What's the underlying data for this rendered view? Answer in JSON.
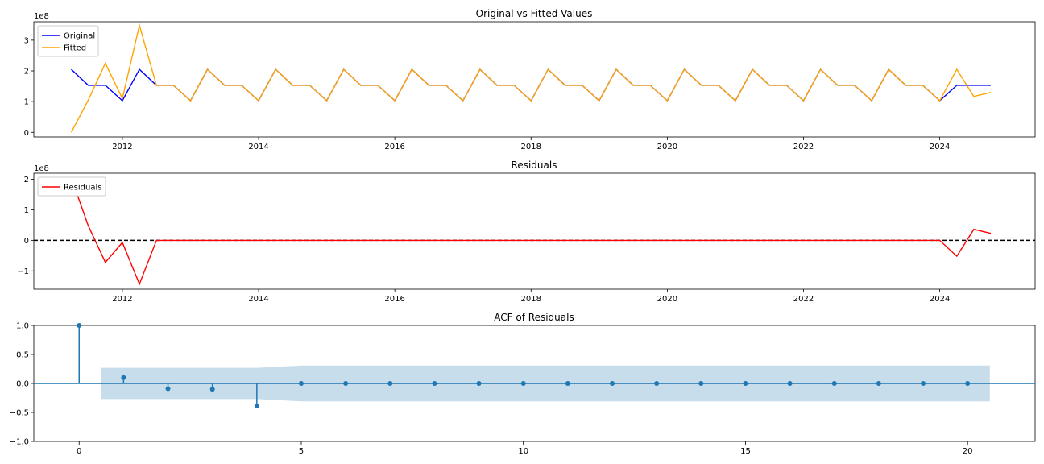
{
  "chart_data": [
    {
      "type": "line",
      "title": "Original vs Fitted Values",
      "offset_text": "1e8",
      "xlim": [
        2010.7,
        2025.4
      ],
      "ylim": [
        -0.15,
        3.6
      ],
      "xticks": [
        2012,
        2014,
        2016,
        2018,
        2020,
        2022,
        2024
      ],
      "yticks": [
        0,
        1,
        2,
        3
      ],
      "legend": "upper-left",
      "grid": false,
      "series": [
        {
          "name": "Original",
          "color": "#0000ff",
          "x": [
            2011.25,
            2011.5,
            2011.75,
            2012.0,
            2012.25,
            2012.5,
            2012.75,
            2013.0,
            2013.25,
            2013.5,
            2013.75,
            2014.0,
            2014.25,
            2014.5,
            2014.75,
            2015.0,
            2015.25,
            2015.5,
            2015.75,
            2016.0,
            2016.25,
            2016.5,
            2016.75,
            2017.0,
            2017.25,
            2017.5,
            2017.75,
            2018.0,
            2018.25,
            2018.5,
            2018.75,
            2019.0,
            2019.25,
            2019.5,
            2019.75,
            2020.0,
            2020.25,
            2020.5,
            2020.75,
            2021.0,
            2021.25,
            2021.5,
            2021.75,
            2022.0,
            2022.25,
            2022.5,
            2022.75,
            2023.0,
            2023.25,
            2023.5,
            2023.75,
            2024.0,
            2024.25,
            2024.5,
            2024.75
          ],
          "values": [
            2.05,
            1.53,
            1.53,
            1.03,
            2.05,
            1.53,
            1.53,
            1.03,
            2.05,
            1.53,
            1.53,
            1.03,
            2.05,
            1.53,
            1.53,
            1.03,
            2.05,
            1.53,
            1.53,
            1.03,
            2.05,
            1.53,
            1.53,
            1.03,
            2.05,
            1.53,
            1.53,
            1.03,
            2.05,
            1.53,
            1.53,
            1.03,
            2.05,
            1.53,
            1.53,
            1.03,
            2.05,
            1.53,
            1.53,
            1.03,
            2.05,
            1.53,
            1.53,
            1.03,
            2.05,
            1.53,
            1.53,
            1.03,
            2.05,
            1.53,
            1.53,
            1.03,
            1.53,
            1.53,
            1.53
          ]
        },
        {
          "name": "Fitted",
          "color": "#ffa500",
          "x": [
            2011.25,
            2011.5,
            2011.75,
            2012.0,
            2012.25,
            2012.5,
            2012.75,
            2013.0,
            2013.25,
            2013.5,
            2013.75,
            2014.0,
            2014.25,
            2014.5,
            2014.75,
            2015.0,
            2015.25,
            2015.5,
            2015.75,
            2016.0,
            2016.25,
            2016.5,
            2016.75,
            2017.0,
            2017.25,
            2017.5,
            2017.75,
            2018.0,
            2018.25,
            2018.5,
            2018.75,
            2019.0,
            2019.25,
            2019.5,
            2019.75,
            2020.0,
            2020.25,
            2020.5,
            2020.75,
            2021.0,
            2021.25,
            2021.5,
            2021.75,
            2022.0,
            2022.25,
            2022.5,
            2022.75,
            2023.0,
            2023.25,
            2023.5,
            2023.75,
            2024.0,
            2024.25,
            2024.5,
            2024.75
          ],
          "values": [
            0.0,
            1.05,
            2.25,
            1.1,
            3.48,
            1.53,
            1.53,
            1.03,
            2.05,
            1.53,
            1.53,
            1.03,
            2.05,
            1.53,
            1.53,
            1.03,
            2.05,
            1.53,
            1.53,
            1.03,
            2.05,
            1.53,
            1.53,
            1.03,
            2.05,
            1.53,
            1.53,
            1.03,
            2.05,
            1.53,
            1.53,
            1.03,
            2.05,
            1.53,
            1.53,
            1.03,
            2.05,
            1.53,
            1.53,
            1.03,
            2.05,
            1.53,
            1.53,
            1.03,
            2.05,
            1.53,
            1.53,
            1.03,
            2.05,
            1.53,
            1.53,
            1.03,
            2.05,
            1.17,
            1.3
          ]
        }
      ]
    },
    {
      "type": "line",
      "title": "Residuals",
      "offset_text": "1e8",
      "xlim": [
        2010.7,
        2025.4
      ],
      "ylim": [
        -1.6,
        2.2
      ],
      "xticks": [
        2012,
        2014,
        2016,
        2018,
        2020,
        2022,
        2024
      ],
      "yticks": [
        -1,
        0,
        1,
        2
      ],
      "ytick_labels": [
        "−1",
        "0",
        "1",
        "2"
      ],
      "legend": "upper-left",
      "grid": false,
      "hline": {
        "y": 0,
        "color": "#000000",
        "style": "dashed"
      },
      "series": [
        {
          "name": "Residuals",
          "color": "#ff0000",
          "x": [
            2011.25,
            2011.5,
            2011.75,
            2012.0,
            2012.25,
            2012.5,
            2012.75,
            2013.0,
            2013.25,
            2013.5,
            2013.75,
            2014.0,
            2014.25,
            2014.5,
            2014.75,
            2015.0,
            2015.25,
            2015.5,
            2015.75,
            2016.0,
            2016.25,
            2016.5,
            2016.75,
            2017.0,
            2017.25,
            2017.5,
            2017.75,
            2018.0,
            2018.25,
            2018.5,
            2018.75,
            2019.0,
            2019.25,
            2019.5,
            2019.75,
            2020.0,
            2020.25,
            2020.5,
            2020.75,
            2021.0,
            2021.25,
            2021.5,
            2021.75,
            2022.0,
            2022.25,
            2022.5,
            2022.75,
            2023.0,
            2023.25,
            2023.5,
            2023.75,
            2024.0,
            2024.25,
            2024.5,
            2024.75
          ],
          "values": [
            2.05,
            0.48,
            -0.72,
            -0.07,
            -1.43,
            0.0,
            0.0,
            0.0,
            0.0,
            0.0,
            0.0,
            0.0,
            0.0,
            0.0,
            0.0,
            0.0,
            0.0,
            0.0,
            0.0,
            0.0,
            0.0,
            0.0,
            0.0,
            0.0,
            0.0,
            0.0,
            0.0,
            0.0,
            0.0,
            0.0,
            0.0,
            0.0,
            0.0,
            0.0,
            0.0,
            0.0,
            0.0,
            0.0,
            0.0,
            0.0,
            0.0,
            0.0,
            0.0,
            0.0,
            0.0,
            0.0,
            0.0,
            0.0,
            0.0,
            0.0,
            0.0,
            0.0,
            -0.52,
            0.36,
            0.23
          ]
        }
      ]
    },
    {
      "type": "stem",
      "title": "ACF of Residuals",
      "xlim": [
        -1.02,
        21.52
      ],
      "ylim": [
        -1.0,
        1.0
      ],
      "xticks": [
        0,
        5,
        10,
        15,
        20
      ],
      "yticks": [
        -1.0,
        -0.5,
        0.0,
        0.5,
        1.0
      ],
      "ytick_labels": [
        "−1.0",
        "−0.5",
        "0.0",
        "0.5",
        "1.0"
      ],
      "color": "#1f77b4",
      "band_color": "#1f77b4",
      "x": [
        0,
        1,
        2,
        3,
        4,
        5,
        6,
        7,
        8,
        9,
        10,
        11,
        12,
        13,
        14,
        15,
        16,
        17,
        18,
        19,
        20
      ],
      "values": [
        1.0,
        0.1,
        -0.09,
        -0.1,
        -0.39,
        0.0,
        0.0,
        0.0,
        0.0,
        0.0,
        0.0,
        0.0,
        0.0,
        0.0,
        0.0,
        0.0,
        0.0,
        0.0,
        0.0,
        0.0,
        0.0
      ],
      "confidence_band": {
        "x": [
          0.5,
          1,
          2,
          3,
          4,
          5,
          6,
          7,
          8,
          9,
          10,
          11,
          12,
          13,
          14,
          15,
          16,
          17,
          18,
          19,
          20,
          20.5
        ],
        "upper": [
          0.27,
          0.27,
          0.27,
          0.27,
          0.27,
          0.31,
          0.31,
          0.31,
          0.31,
          0.31,
          0.31,
          0.31,
          0.31,
          0.31,
          0.31,
          0.31,
          0.31,
          0.31,
          0.31,
          0.31,
          0.31,
          0.31
        ]
      }
    }
  ]
}
